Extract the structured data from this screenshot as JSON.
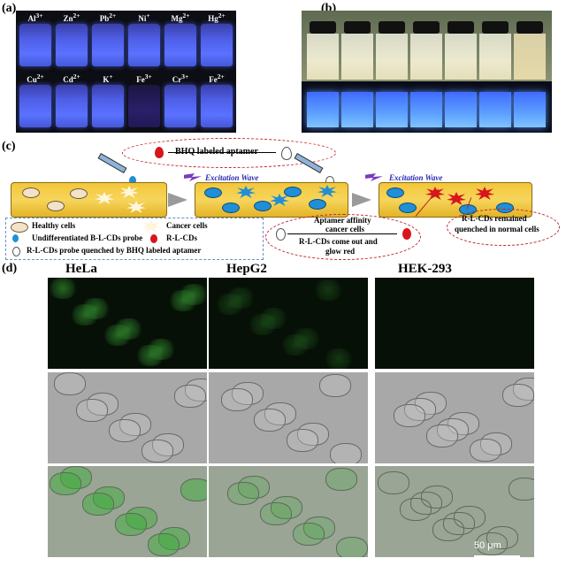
{
  "panels": {
    "a": {
      "label": "(a)",
      "row1": [
        "Al3+",
        "Zn2+",
        "Pb2+",
        "Ni+",
        "Mg2+",
        "Hg2+"
      ],
      "row2": [
        "Cu2+",
        "Cd2+",
        "K+",
        "Fe3+",
        "Cr3+",
        "Fe2+"
      ],
      "row1_html": [
        "Al<sup>3+</sup>",
        "Zn<sup>2+</sup>",
        "Pb<sup>2+</sup>",
        "Ni<sup>+</sup>",
        "Mg<sup>2+</sup>",
        "Hg<sup>2+</sup>"
      ],
      "row2_html": [
        "Cu<sup>2+</sup>",
        "Cd<sup>2+</sup>",
        "K<sup>+</sup>",
        "Fe<sup>3+</sup>",
        "Cr<sup>3+</sup>",
        "Fe<sup>2+</sup>"
      ],
      "quenched_ion": "Fe3+"
    },
    "b": {
      "label": "(b)"
    },
    "c": {
      "label": "(c)",
      "bhq_label": "BHQ labeled aptamer",
      "excitation_1": "Excitation Wave",
      "excitation_2": "Excitation Wave",
      "legend": {
        "healthy": "Healthy cells",
        "cancer": "Cancer cells",
        "undiff": "Undifferentiated B-L-CDs probe",
        "rlcds": "R-L-CDs",
        "quenched": "R-L-CDs probe quenched by BHQ labeled aptamer"
      },
      "affinity_1": "Aptamer affinity",
      "affinity_2": "cancer cells",
      "come_out_1": "R-L-CDs come out and",
      "come_out_2": "glow red",
      "remained_1": "R-L-CDs remained",
      "remained_2": "quenched in normal cells"
    },
    "d": {
      "label": "(d)",
      "columns": [
        "HeLa",
        "HepG2",
        "HEK-293"
      ],
      "scale_bar": "50 μm"
    }
  },
  "colors": {
    "vial_glow": "#5a72ff",
    "tube": "#f3c63a",
    "blue_probe": "#1f8fd8",
    "red_probe": "#d8141c",
    "dash_red": "#c0262c",
    "legend_border": "#6a8fc4",
    "fluor_green": "#3fae3a"
  }
}
